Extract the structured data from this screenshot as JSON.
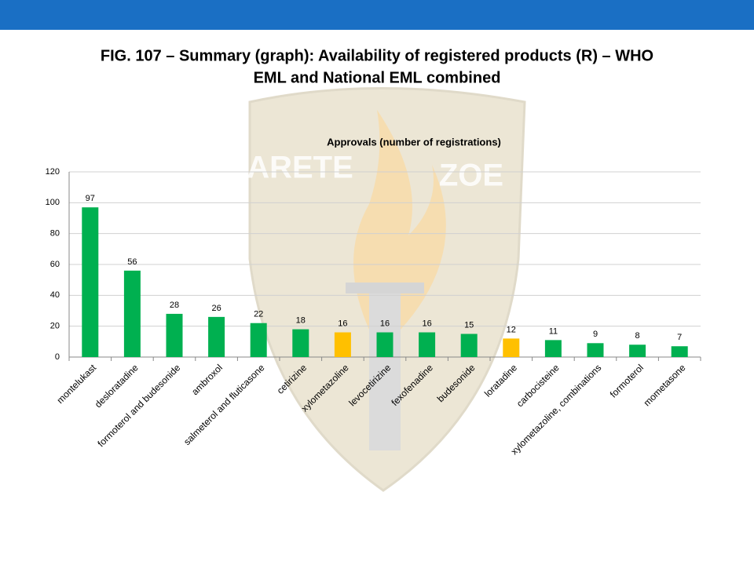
{
  "title_lines": [
    "FIG. 107 – Summary (graph): Availability of registered products (R) – WHO",
    "EML and National EML combined"
  ],
  "watermark": [
    "ARETE",
    "ZOE"
  ],
  "chart_data": {
    "type": "bar",
    "title": "Approvals (number of registrations)",
    "categories": [
      "montelukast",
      "desloratadine",
      "formoterol and budesonide",
      "ambroxol",
      "salmeterol and fluticasone",
      "cetirizine",
      "xylometazoline",
      "levocetirizine",
      "fexofenadine",
      "budesonide",
      "loratadine",
      "carbocisteine",
      "xylometazoline, combinations",
      "formoterol",
      "mometasone"
    ],
    "values": [
      97,
      56,
      28,
      26,
      22,
      18,
      16,
      16,
      16,
      15,
      12,
      11,
      9,
      8,
      7
    ],
    "colors": [
      "#00b050",
      "#00b050",
      "#00b050",
      "#00b050",
      "#00b050",
      "#00b050",
      "#ffc000",
      "#00b050",
      "#00b050",
      "#00b050",
      "#ffc000",
      "#00b050",
      "#00b050",
      "#00b050",
      "#00b050"
    ],
    "ylim": [
      0,
      120
    ],
    "yticks": [
      0,
      20,
      40,
      60,
      80,
      100,
      120
    ],
    "grid": true
  }
}
